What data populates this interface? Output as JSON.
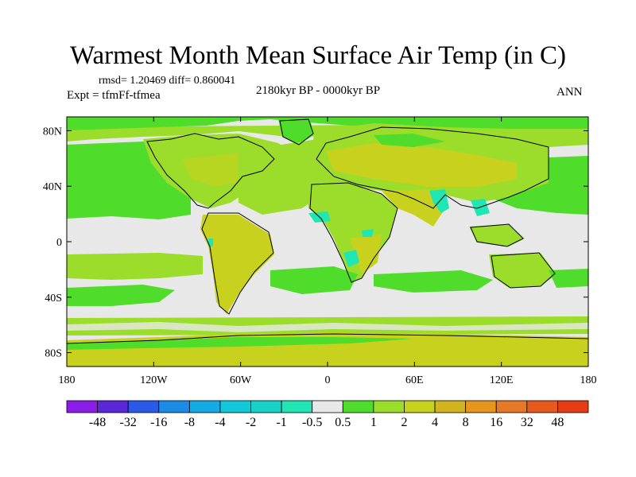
{
  "header": {
    "title": "Warmest Month Mean Surface Air Temp (in C)",
    "stats": "rmsd= 1.20469 diff= 0.860041",
    "period": "2180kyr BP - 0000kyr BP",
    "experiment": "Expt = tfmFf-tfmea",
    "season": "ANN"
  },
  "map": {
    "lon_ticks": [
      "180",
      "120W",
      "60W",
      "0",
      "60E",
      "120E",
      "180"
    ],
    "lat_ticks": [
      "80N",
      "40N",
      "0",
      "40S",
      "80S"
    ],
    "lat_values": [
      80,
      40,
      0,
      -40,
      -80
    ],
    "lon_values": [
      -180,
      -120,
      -60,
      0,
      60,
      120,
      180
    ],
    "extent": {
      "lon": [
        -180,
        180
      ],
      "lat": [
        -90,
        90
      ]
    }
  },
  "colorbar": {
    "labels": [
      "-48",
      "-32",
      "-16",
      "-8",
      "-4",
      "-2",
      "-1",
      "-0.5",
      "0.5",
      "1",
      "2",
      "4",
      "8",
      "16",
      "32",
      "48"
    ],
    "colors": [
      "#8a1ee6",
      "#5a28d8",
      "#2a5ae6",
      "#1a8ce6",
      "#14aae6",
      "#14c8dc",
      "#18d2c8",
      "#20e6b4",
      "#e8e8e8",
      "#50dc2a",
      "#9cdc2a",
      "#c8d21e",
      "#d2b41e",
      "#e6961e",
      "#e67828",
      "#e65a1e",
      "#e63c14"
    ]
  },
  "palette": {
    "neutral": "#e8e8e8",
    "green_bright": "#50dc2a",
    "green_light": "#9cdc2a",
    "olive": "#c8d21e",
    "cyan": "#20e6b4"
  }
}
